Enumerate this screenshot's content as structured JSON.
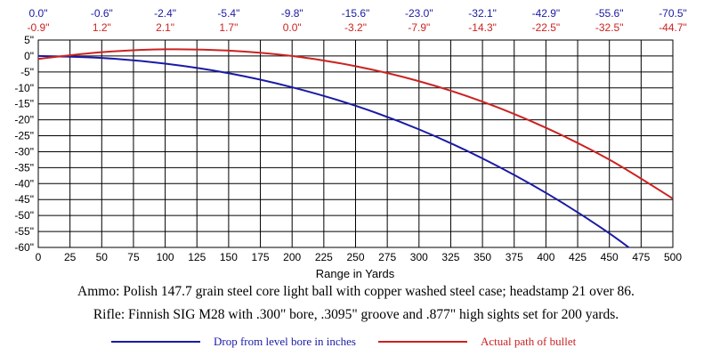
{
  "chart_data": {
    "type": "line",
    "xlabel": "Range in Yards",
    "ylabel": "",
    "xlim": [
      0,
      500
    ],
    "ylim": [
      -60,
      5
    ],
    "grid": true,
    "x_ticks": [
      0,
      25,
      50,
      75,
      100,
      125,
      150,
      175,
      200,
      225,
      250,
      275,
      300,
      325,
      350,
      375,
      400,
      425,
      450,
      475,
      500
    ],
    "y_ticks": [
      5,
      0,
      -5,
      -10,
      -15,
      -20,
      -25,
      -30,
      -35,
      -40,
      -45,
      -50,
      -55,
      -60
    ],
    "y_tick_labels": [
      "5\"",
      "0\"",
      "-5\"",
      "-10\"",
      "-15\"",
      "-20\"",
      "-25\"",
      "-30\"",
      "-35\"",
      "-40\"",
      "-45\"",
      "-50\"",
      "-55\"",
      "-60\""
    ],
    "top_labels": {
      "x": [
        0,
        50,
        100,
        150,
        200,
        250,
        300,
        350,
        400,
        450,
        500
      ],
      "drop_row": [
        "0.0\"",
        "-0.6\"",
        "-2.4\"",
        "-5.4\"",
        "-9.8\"",
        "-15.6\"",
        "-23.0\"",
        "-32.1\"",
        "-42.9\"",
        "-55.6\"",
        "-70.5\""
      ],
      "path_row": [
        "-0.9\"",
        "1.2\"",
        "2.1\"",
        "1.7\"",
        "0.0\"",
        "-3.2\"",
        "-7.9\"",
        "-14.3\"",
        "-22.5\"",
        "-32.5\"",
        "-44.7\""
      ]
    },
    "series": [
      {
        "name": "Drop from level bore in inches",
        "color": "#1a1aa6",
        "x": [
          0,
          50,
          100,
          150,
          200,
          250,
          300,
          350,
          400,
          450,
          500
        ],
        "values": [
          0.0,
          -0.6,
          -2.4,
          -5.4,
          -9.8,
          -15.6,
          -23.0,
          -32.1,
          -42.9,
          -55.6,
          -70.5
        ]
      },
      {
        "name": "Actual path of bullet",
        "color": "#cc2222",
        "x": [
          0,
          50,
          100,
          150,
          200,
          250,
          300,
          350,
          400,
          450,
          500
        ],
        "values": [
          -0.9,
          1.2,
          2.1,
          1.7,
          0.0,
          -3.2,
          -7.9,
          -14.3,
          -22.5,
          -32.5,
          -44.7
        ]
      }
    ]
  },
  "captions": {
    "ammo": "Ammo:  Polish 147.7 grain steel core light ball with copper washed steel case; headstamp 21 over 86.",
    "rifle": "Rifle:  Finnish SIG M28 with .300\" bore, .3095\" groove and .877\" high sights set for 200 yards."
  },
  "legend": {
    "drop_label": "Drop from level bore in inches",
    "path_label": "Actual path of bullet"
  }
}
